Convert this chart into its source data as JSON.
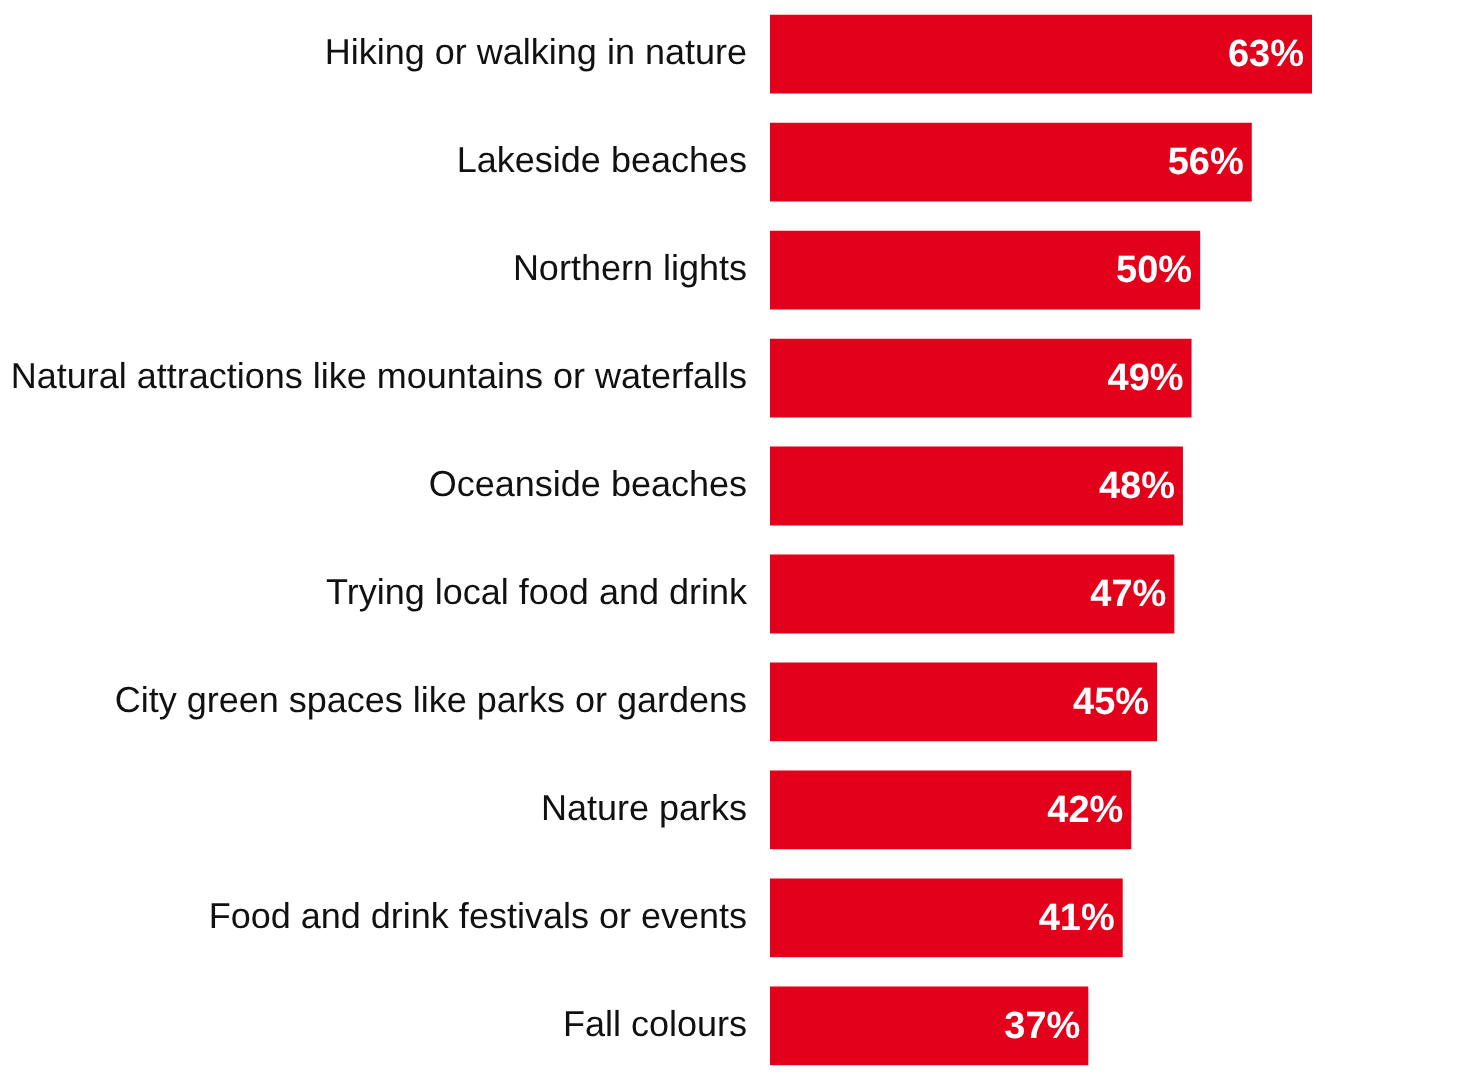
{
  "chart_data": {
    "type": "bar",
    "orientation": "horizontal",
    "categories": [
      "Hiking or walking in nature",
      "Lakeside beaches",
      "Northern lights",
      "Natural attractions like mountains or waterfalls",
      "Oceanside beaches",
      "Trying local food and drink",
      "City green spaces like parks or gardens",
      "Nature parks",
      "Food and drink festivals or events",
      "Fall colours"
    ],
    "values": [
      63,
      56,
      50,
      49,
      48,
      47,
      45,
      42,
      41,
      37
    ],
    "value_labels": [
      "63%",
      "56%",
      "50%",
      "49%",
      "48%",
      "47%",
      "45%",
      "42%",
      "41%",
      "37%"
    ],
    "color": "#e2001a"
  }
}
